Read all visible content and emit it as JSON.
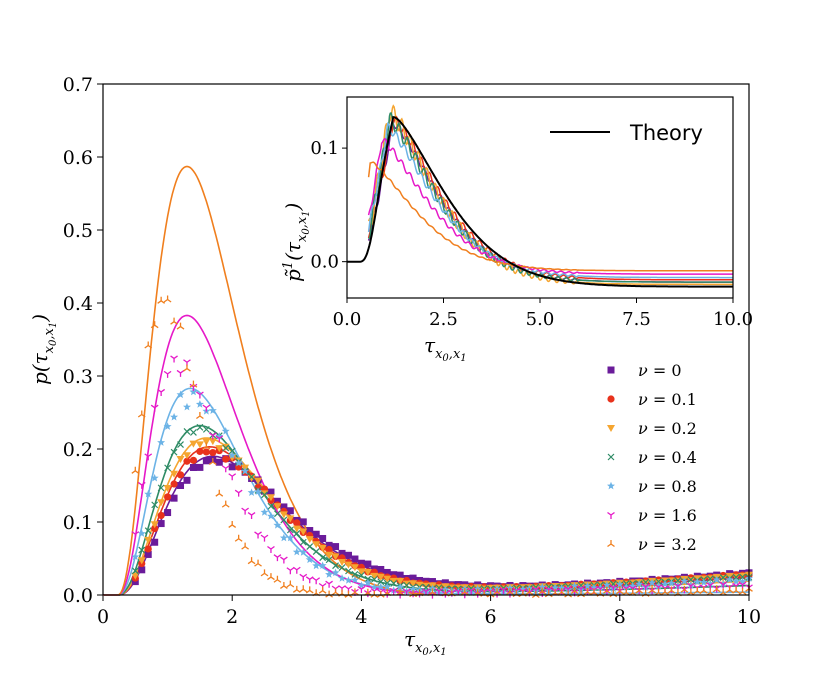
{
  "chart_data": [
    {
      "type": "scatter",
      "title": "",
      "xlabel": "τ_{x0,x1}",
      "ylabel": "p(τ_{x0,x1})",
      "xlim": [
        0,
        10
      ],
      "ylim": [
        0,
        0.7
      ],
      "xticks": [
        "0",
        "2",
        "4",
        "6",
        "8",
        "10"
      ],
      "yticks": [
        "0.0",
        "0.1",
        "0.2",
        "0.3",
        "0.4",
        "0.5",
        "0.6",
        "0.7"
      ],
      "legend_position": "right",
      "series": [
        {
          "name": "ν = 0",
          "color": "#6a1b9a",
          "marker": "square",
          "peak": [
            1.75,
            0.185
          ],
          "end_value": 0.03,
          "curve_peak": [
            1.7,
            0.19
          ]
        },
        {
          "name": "ν = 0.1",
          "color": "#e8321c",
          "marker": "circle",
          "peak": [
            1.65,
            0.197
          ],
          "end_value": 0.028,
          "curve_peak": [
            1.65,
            0.203
          ]
        },
        {
          "name": "ν = 0.2",
          "color": "#f5a530",
          "marker": "triangle-down",
          "peak": [
            1.6,
            0.21
          ],
          "end_value": 0.027,
          "curve_peak": [
            1.6,
            0.215
          ]
        },
        {
          "name": "ν = 0.4",
          "color": "#2e8b65",
          "marker": "x",
          "peak": [
            1.5,
            0.228
          ],
          "end_value": 0.025,
          "curve_peak": [
            1.5,
            0.232
          ]
        },
        {
          "name": "ν = 0.8",
          "color": "#6cb3e6",
          "marker": "star",
          "peak": [
            1.35,
            0.27
          ],
          "end_value": 0.02,
          "curve_peak": [
            1.35,
            0.283
          ]
        },
        {
          "name": "ν = 1.6",
          "color": "#e619c8",
          "marker": "tri-down",
          "peak": [
            1.15,
            0.317
          ],
          "end_value": 0.013,
          "curve_peak": [
            1.3,
            0.383
          ]
        },
        {
          "name": "ν = 3.2",
          "color": "#f07f1e",
          "marker": "tri-up",
          "peak": [
            0.95,
            0.403
          ],
          "end_value": 0.006,
          "curve_peak": [
            1.3,
            0.587
          ]
        }
      ]
    },
    {
      "type": "line",
      "title": "",
      "xlabel": "τ_{x0,x1}",
      "ylabel": "p̃¹(τ_{x0,x1})",
      "xlim": [
        0,
        10
      ],
      "ylim": [
        -0.032,
        0.145
      ],
      "xticks": [
        "0.0",
        "2.5",
        "5.0",
        "7.5",
        "10.0"
      ],
      "yticks": [
        "0.0",
        "0.1"
      ],
      "legend_position": "top-right",
      "series": [
        {
          "name": "Theory",
          "color": "#000000",
          "peak": [
            1.2,
            0.128
          ],
          "end_value": -0.022
        }
      ]
    }
  ],
  "legend": {
    "main": [
      {
        "nu_label": "ν = ",
        "nu_value": "0"
      },
      {
        "nu_label": "ν = ",
        "nu_value": "0.1"
      },
      {
        "nu_label": "ν = ",
        "nu_value": "0.2"
      },
      {
        "nu_label": "ν = ",
        "nu_value": "0.4"
      },
      {
        "nu_label": "ν = ",
        "nu_value": "0.8"
      },
      {
        "nu_label": "ν = ",
        "nu_value": "1.6"
      },
      {
        "nu_label": "ν = ",
        "nu_value": "3.2"
      }
    ],
    "inset": "Theory"
  },
  "labels": {
    "main_x_sym": "τ",
    "main_x_sub": "x",
    "main_y_prefix": "p(",
    "main_y_sym": "τ",
    "main_y_sub": "x",
    "main_y_suffix": ")",
    "sub0": "0",
    "sub1": "1",
    "inset_y_prefix": "p̃",
    "inset_y_sup": "1",
    "inset_x_sym": "τ"
  }
}
